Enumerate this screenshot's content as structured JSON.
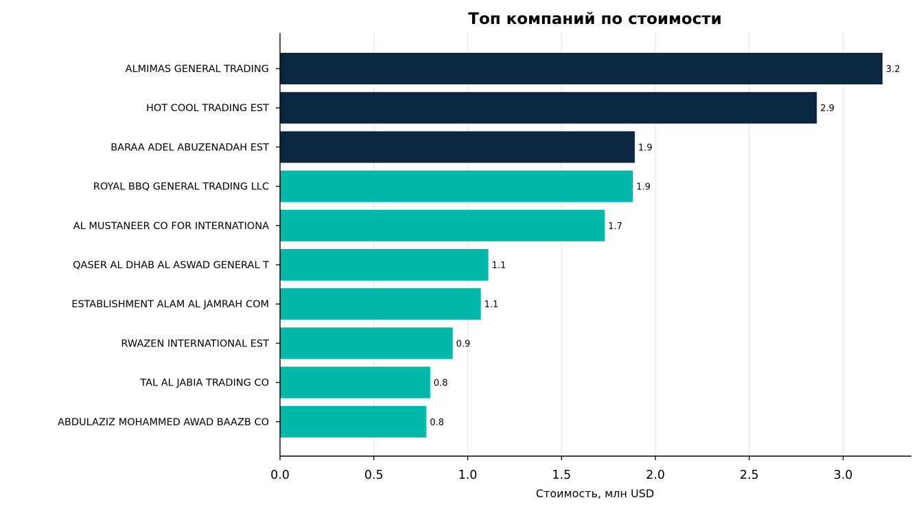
{
  "chart_data": {
    "type": "bar",
    "orientation": "horizontal",
    "title": "Топ компаний по стоимости",
    "xlabel": "Стоимость, млн USD",
    "ylabel": "",
    "xlim": [
      0,
      3.38
    ],
    "xticks": [
      0.0,
      0.5,
      1.0,
      1.5,
      2.0,
      2.5,
      3.0
    ],
    "xtick_labels": [
      "0.0",
      "0.5",
      "1.0",
      "1.5",
      "2.0",
      "2.5",
      "3.0"
    ],
    "grid": "vertical",
    "legend": "none",
    "categories": [
      "ALMIMAS GENERAL TRADING",
      "HOT COOL TRADING EST",
      "BARAA ADEL ABUZENADAH EST",
      "ROYAL BBQ GENERAL TRADING LLC",
      "AL MUSTANEER CO FOR INTERNATIONA",
      "QASER AL DHAB AL ASWAD GENERAL T",
      "ESTABLISHMENT ALAM AL JAMRAH COM",
      "RWAZEN INTERNATIONAL EST",
      "TAL AL JABIA TRADING CO",
      "ABDULAZIZ MOHAMMED AWAD BAAZB CO"
    ],
    "values": [
      3.21,
      2.86,
      1.89,
      1.88,
      1.73,
      1.11,
      1.07,
      0.92,
      0.8,
      0.78
    ],
    "value_labels": [
      "3.2",
      "2.9",
      "1.9",
      "1.9",
      "1.7",
      "1.1",
      "1.1",
      "0.9",
      "0.8",
      "0.8"
    ],
    "highlight_count": 3,
    "colors": {
      "highlight": "#0c2742",
      "normal": "#00b8a9"
    }
  }
}
